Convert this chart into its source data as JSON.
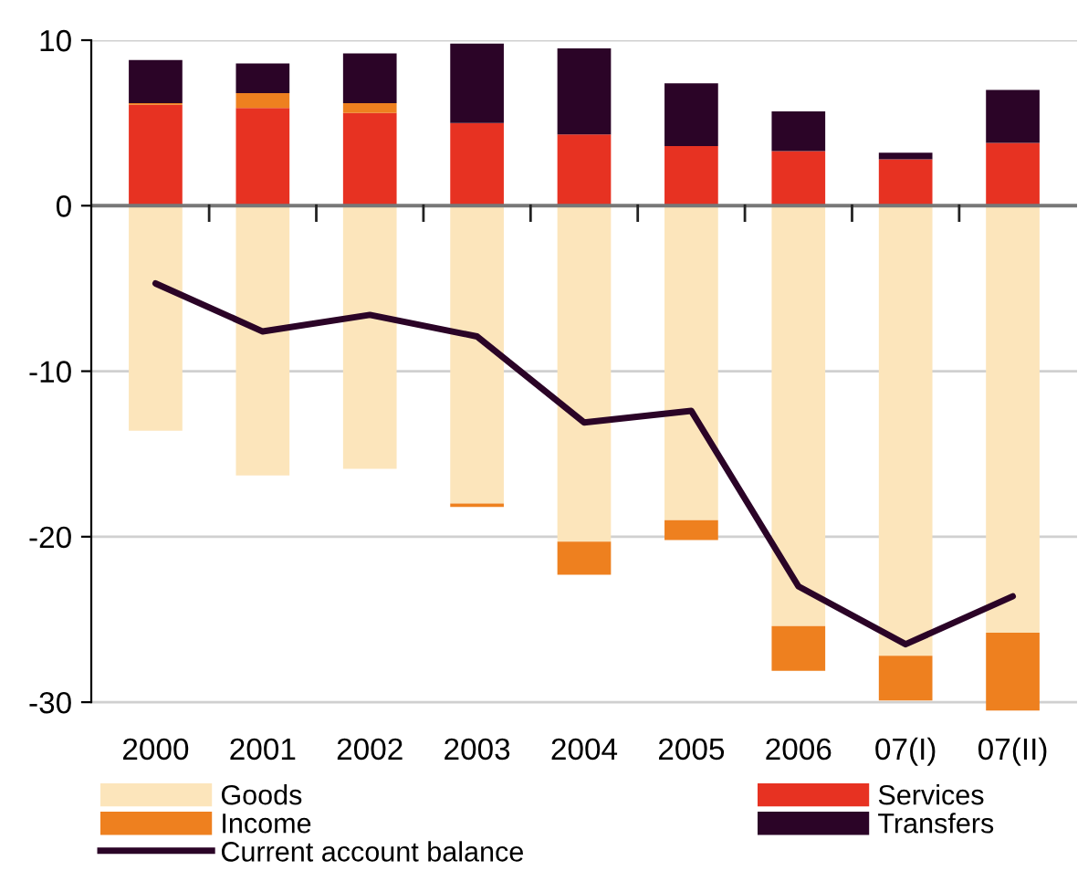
{
  "chart_data": {
    "type": "bar",
    "stacked": true,
    "categories": [
      "2000",
      "2001",
      "2002",
      "2003",
      "2004",
      "2005",
      "2006",
      "07(I)",
      "07(II)"
    ],
    "series": [
      {
        "name": "Goods",
        "color": "#fce5bb",
        "values": [
          -13.6,
          -16.3,
          -15.9,
          -18.0,
          -20.3,
          -19.0,
          -25.4,
          -27.2,
          -25.8
        ]
      },
      {
        "name": "Services",
        "color": "#e73222",
        "values": [
          6.1,
          5.9,
          5.6,
          5.0,
          4.3,
          3.6,
          3.3,
          2.8,
          3.8
        ]
      },
      {
        "name": "Income",
        "color": "#ee801f",
        "values": [
          0.1,
          0.9,
          0.6,
          -0.2,
          -2.0,
          -1.2,
          -2.7,
          -2.7,
          -4.7
        ]
      },
      {
        "name": "Transfers",
        "color": "#2b0427",
        "values": [
          2.6,
          1.8,
          3.0,
          4.8,
          5.2,
          3.8,
          2.4,
          0.4,
          3.2
        ]
      },
      {
        "name": "Current account balance",
        "type": "line",
        "color": "#2b0427",
        "values": [
          -4.7,
          -7.6,
          -6.6,
          -7.9,
          -13.1,
          -12.4,
          -23.0,
          -26.5,
          -23.6
        ]
      }
    ],
    "ylim": [
      -30.6,
      10
    ],
    "yticks": [
      -30,
      -20,
      -10,
      0,
      10
    ],
    "grid": "y",
    "legend": "bottom"
  }
}
